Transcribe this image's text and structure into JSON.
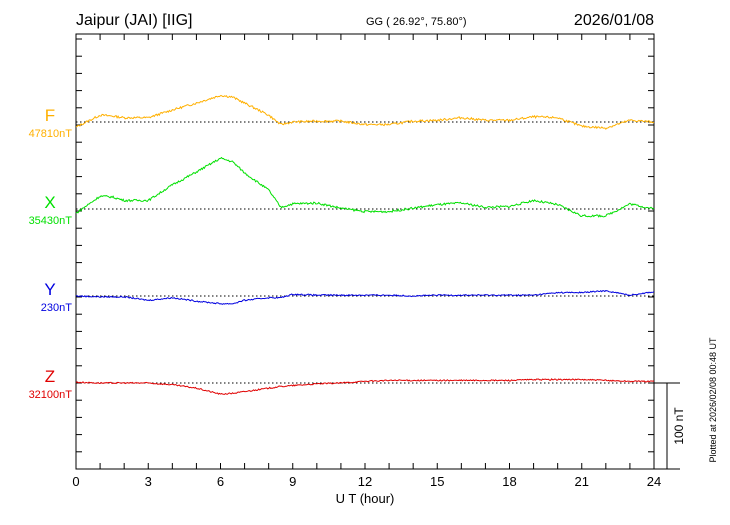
{
  "header": {
    "station": "Jaipur (JAI)  [IIG]",
    "coords": "GG ( 26.92°,  75.80°)",
    "date": "2026/01/08"
  },
  "footer_note": "Plotted at 2026/02/08 00:48 UT",
  "scale_label": "100 nT",
  "chart_data": {
    "type": "line",
    "title": "Jaipur (JAI)  [IIG]",
    "xlabel": "U T (hour)",
    "xlim": [
      0,
      24
    ],
    "xticks": [
      "0",
      "3",
      "6",
      "9",
      "12",
      "15",
      "18",
      "21",
      "24"
    ],
    "scale_nT": 100,
    "x": [
      0,
      1,
      1.5,
      2,
      3,
      4,
      5,
      6,
      6.5,
      7,
      8,
      8.5,
      9,
      10,
      11,
      12,
      13,
      14,
      15,
      16,
      17,
      18,
      19,
      20,
      21,
      22,
      23,
      24
    ],
    "series": [
      {
        "name": "F",
        "baseline_label": "47810nT",
        "color": "#ffb000",
        "values": [
          -6,
          8,
          7,
          5,
          5,
          14,
          22,
          31,
          29,
          22,
          8,
          -3,
          0,
          1,
          1,
          -3,
          -3,
          1,
          2,
          5,
          2,
          2,
          6,
          5,
          -5,
          -7,
          2,
          0
        ]
      },
      {
        "name": "X",
        "baseline_label": "35430nT",
        "color": "#00e000",
        "values": [
          -5,
          15,
          14,
          10,
          10,
          28,
          43,
          59,
          55,
          42,
          22,
          2,
          6,
          7,
          1,
          -3,
          -3,
          1,
          5,
          7,
          2,
          3,
          10,
          5,
          -8,
          -8,
          6,
          0
        ]
      },
      {
        "name": "Y",
        "baseline_label": "230nT",
        "color": "#0000e0",
        "values": [
          0,
          -1,
          -1,
          -1,
          -5,
          -2,
          -6,
          -9,
          -9,
          -5,
          -2,
          -2,
          2,
          1,
          1,
          1,
          1,
          0,
          1,
          1,
          1,
          1,
          1,
          4,
          4,
          6,
          1,
          5
        ]
      },
      {
        "name": "Z",
        "baseline_label": "32100nT",
        "color": "#e00000",
        "values": [
          1,
          0,
          0,
          0,
          0,
          -2,
          -6,
          -13,
          -12,
          -10,
          -6,
          -4,
          -3,
          -1,
          0,
          2,
          3,
          3,
          3,
          3,
          3,
          3,
          4,
          4,
          4,
          3,
          2,
          2
        ]
      }
    ]
  }
}
